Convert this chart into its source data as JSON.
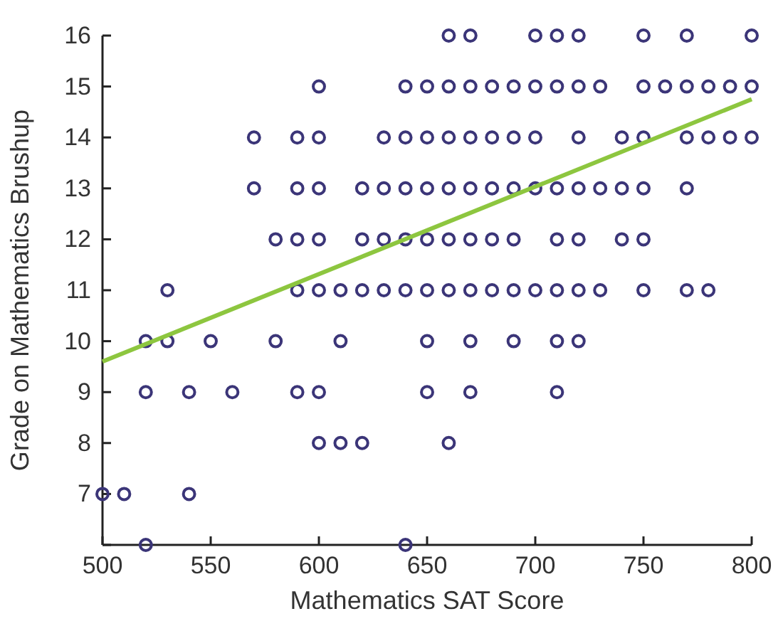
{
  "chart_data": {
    "type": "scatter",
    "xlabel": "Mathematics SAT Score",
    "ylabel": "Grade on Mathematics Brushup",
    "xlim": [
      500,
      800
    ],
    "ylim": [
      6,
      16
    ],
    "xticks": [
      500,
      550,
      600,
      650,
      700,
      750,
      800
    ],
    "yticks": [
      {
        "value": 6,
        "label": null
      },
      7,
      8,
      9,
      10,
      11,
      12,
      13,
      14,
      15,
      16
    ],
    "grid": false,
    "series": [
      {
        "color": "#3b3578",
        "marker": "circle",
        "x": [
          660,
          670,
          700,
          710,
          720,
          750,
          770,
          800,
          600,
          640,
          650,
          660,
          670,
          680,
          690,
          700,
          710,
          720,
          730,
          750,
          760,
          770,
          780,
          790,
          800,
          570,
          590,
          600,
          630,
          640,
          650,
          660,
          670,
          680,
          690,
          700,
          720,
          740,
          750,
          770,
          780,
          790,
          800,
          570,
          590,
          600,
          620,
          630,
          640,
          650,
          660,
          670,
          680,
          690,
          700,
          710,
          720,
          730,
          740,
          750,
          770,
          580,
          590,
          600,
          620,
          630,
          640,
          650,
          660,
          670,
          680,
          690,
          710,
          720,
          740,
          750,
          530,
          590,
          600,
          610,
          620,
          630,
          640,
          650,
          660,
          670,
          680,
          690,
          700,
          710,
          720,
          730,
          750,
          770,
          780,
          520,
          530,
          550,
          580,
          610,
          650,
          670,
          690,
          710,
          720,
          520,
          540,
          560,
          590,
          600,
          650,
          670,
          710,
          600,
          610,
          620,
          660,
          500,
          510,
          540,
          520,
          640
        ],
        "values": [
          16,
          16,
          16,
          16,
          16,
          16,
          16,
          16,
          15,
          15,
          15,
          15,
          15,
          15,
          15,
          15,
          15,
          15,
          15,
          15,
          15,
          15,
          15,
          15,
          15,
          14,
          14,
          14,
          14,
          14,
          14,
          14,
          14,
          14,
          14,
          14,
          14,
          14,
          14,
          14,
          14,
          14,
          14,
          13,
          13,
          13,
          13,
          13,
          13,
          13,
          13,
          13,
          13,
          13,
          13,
          13,
          13,
          13,
          13,
          13,
          13,
          12,
          12,
          12,
          12,
          12,
          12,
          12,
          12,
          12,
          12,
          12,
          12,
          12,
          12,
          12,
          11,
          11,
          11,
          11,
          11,
          11,
          11,
          11,
          11,
          11,
          11,
          11,
          11,
          11,
          11,
          11,
          11,
          11,
          11,
          10,
          10,
          10,
          10,
          10,
          10,
          10,
          10,
          10,
          10,
          9,
          9,
          9,
          9,
          9,
          9,
          9,
          9,
          8,
          8,
          8,
          8,
          7,
          7,
          7,
          6,
          6
        ]
      },
      {
        "type": "line",
        "color": "#8dc63f",
        "line_style": "solid",
        "x": [
          500,
          800
        ],
        "values": [
          9.6,
          14.75
        ]
      }
    ]
  }
}
